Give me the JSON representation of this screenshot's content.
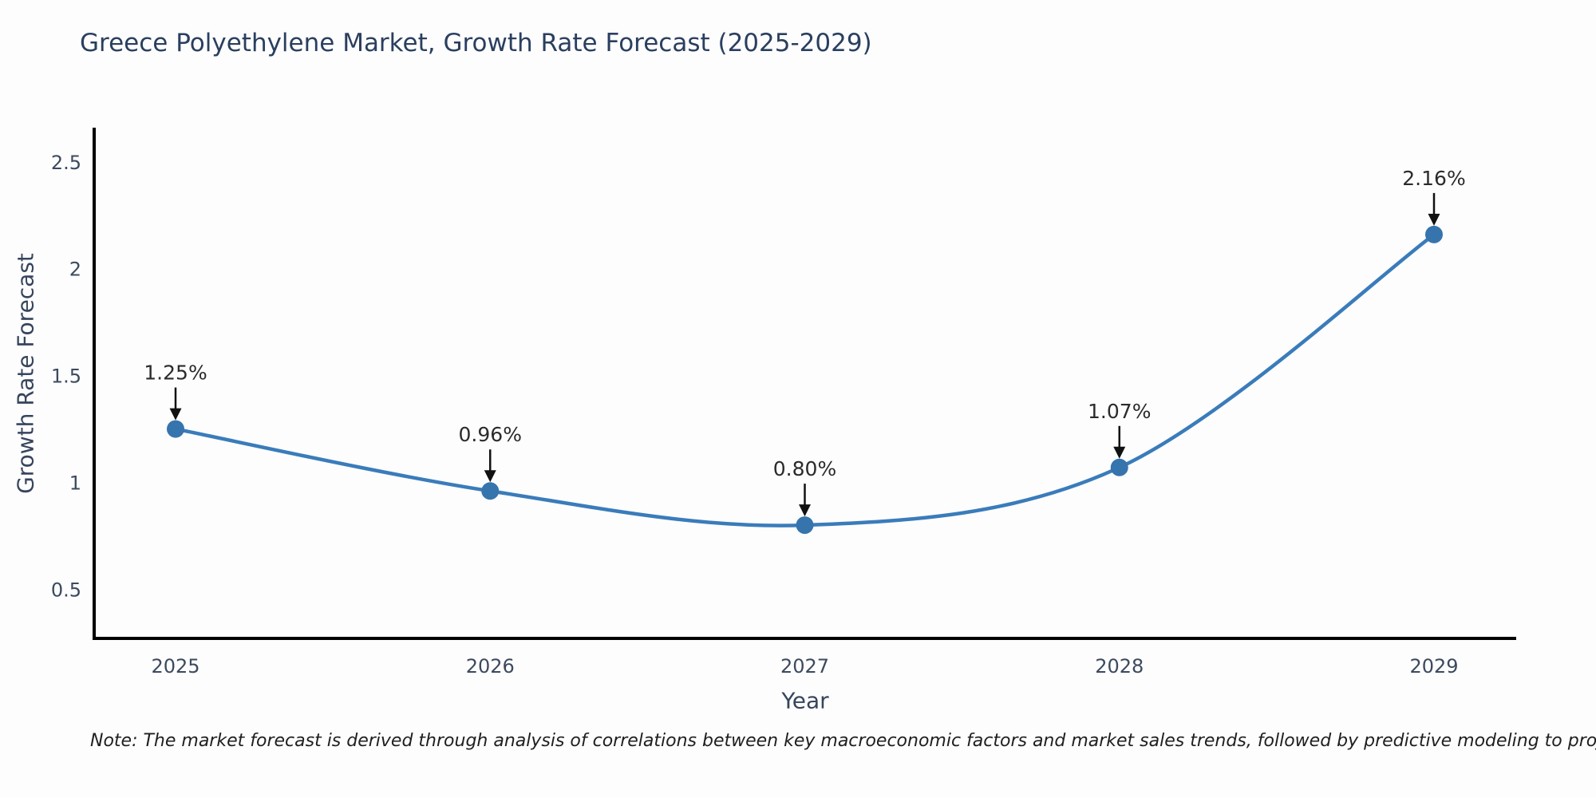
{
  "title": "Greece Polyethylene Market, Growth Rate Forecast (2025-2029)",
  "note": "Note: The market forecast is derived through analysis of correlations between key macroeconomic factors and market sales trends, followed by predictive modeling to project future sales",
  "chart_data": {
    "type": "line",
    "title": "Greece Polyethylene Market, Growth Rate Forecast (2025-2029)",
    "x": [
      "2025",
      "2026",
      "2027",
      "2028",
      "2029"
    ],
    "series": [
      {
        "name": "Growth Rate Forecast",
        "values": [
          1.25,
          0.96,
          0.8,
          1.07,
          2.16
        ],
        "point_labels": [
          "1.25%",
          "0.96%",
          "0.80%",
          "1.07%",
          "2.16%"
        ]
      }
    ],
    "xlabel": "Year",
    "ylabel": "Growth Rate Forecast",
    "ytick_labels": [
      "0.5",
      "1",
      "1.5",
      "2",
      "2.5"
    ],
    "ytick_values": [
      0.5,
      1,
      1.5,
      2,
      2.5
    ],
    "ylim": [
      0.27,
      2.66
    ],
    "grid": false,
    "legend_position": "none",
    "line_shape": "spline",
    "annotations_have_arrows": true,
    "colors": {
      "line": "#3a7cba",
      "marker": "#3674ad",
      "axis_line": "#000000",
      "title_text": "#2a3f5f",
      "axis_label_text": "#36455c",
      "tick_text": "#3c4a5e",
      "annotation_text": "#2b2b2b",
      "arrow": "#111111",
      "note_text": "#1f1f1f",
      "background": "#fdfdfe"
    }
  }
}
